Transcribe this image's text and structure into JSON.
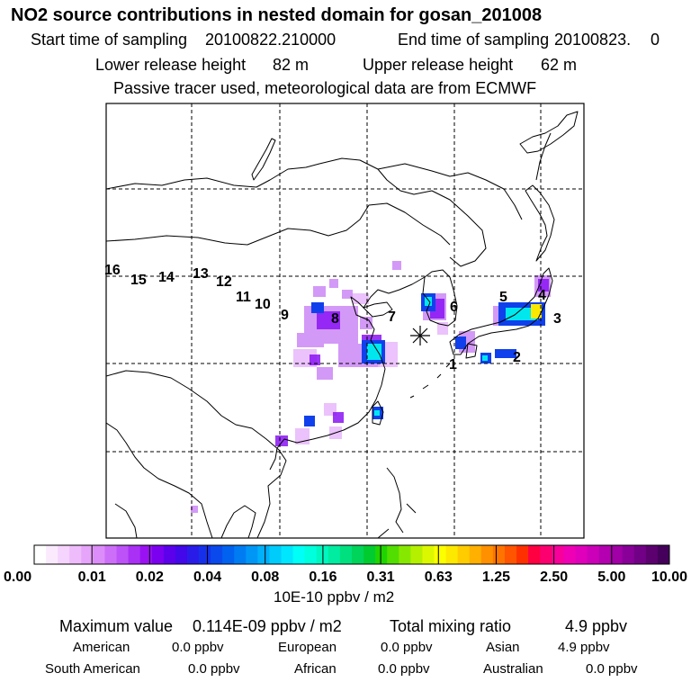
{
  "header": {
    "title": "NO2 source contributions in nested domain for gosan_201008",
    "start_label": "Start time of sampling",
    "start_value": "20100822.210000",
    "end_label": "End time of sampling",
    "end_value": "20100823.",
    "end_extra": "0",
    "lower_label": "Lower release height",
    "lower_value": "82 m",
    "upper_label": "Upper release height",
    "upper_value": "62 m",
    "note": "Passive tracer used, meteorological data are from ECMWF"
  },
  "map": {
    "receptor_symbol": "asterisk",
    "region_labels": [
      "1",
      "2",
      "3",
      "4",
      "5",
      "6",
      "7",
      "8",
      "9",
      "10",
      "11",
      "12",
      "13",
      "14",
      "15",
      "16"
    ],
    "colors": {
      "coast": "#000000",
      "grid": "#000000"
    }
  },
  "colorbar": {
    "ticks": [
      "0.00",
      "0.01",
      "0.02",
      "0.04",
      "0.08",
      "0.16",
      "0.31",
      "0.63",
      "1.25",
      "2.50",
      "5.00",
      "10.00"
    ],
    "units": "10E-10 ppbv / m2",
    "colors": [
      "#ffffff",
      "#fbeafe",
      "#f5d4fd",
      "#eebcfb",
      "#e6a4fa",
      "#dc8df9",
      "#cd6ef8",
      "#bc52f7",
      "#aa30f5",
      "#9a12f3",
      "#7c00f0",
      "#5c00ec",
      "#4208ea",
      "#2a1ce8",
      "#1630ea",
      "#0a4aec",
      "#0062ef",
      "#007cf3",
      "#0096f6",
      "#00b0f9",
      "#00ccfc",
      "#00e6fe",
      "#00fff6",
      "#00ffdc",
      "#00f7c0",
      "#00eca0",
      "#00e07e",
      "#00d45a",
      "#00cc30",
      "#20d400",
      "#52de00",
      "#86e800",
      "#b4f000",
      "#dcf800",
      "#fbff00",
      "#fde800",
      "#ffcc00",
      "#ffb000",
      "#ff9000",
      "#ff7400",
      "#ff5400",
      "#ff3000",
      "#ff0040",
      "#fc0070",
      "#f8009a",
      "#f000b4",
      "#e000bc",
      "#cc00b8",
      "#b400b0",
      "#a000a6",
      "#880098",
      "#720086",
      "#5c0070",
      "#44005a"
    ]
  },
  "stats": {
    "max_label": "Maximum value",
    "max_value": "0.114E-09 ppbv / m2",
    "total_label": "Total mixing ratio",
    "total_value": "4.9 ppbv",
    "regions": [
      {
        "name": "American",
        "value": "0.0 ppbv"
      },
      {
        "name": "European",
        "value": "0.0 ppbv"
      },
      {
        "name": "Asian",
        "value": "4.9 ppbv"
      },
      {
        "name": "South American",
        "value": "0.0 ppbv"
      },
      {
        "name": "African",
        "value": "0.0 ppbv"
      },
      {
        "name": "Australian",
        "value": "0.0 ppbv"
      }
    ]
  }
}
